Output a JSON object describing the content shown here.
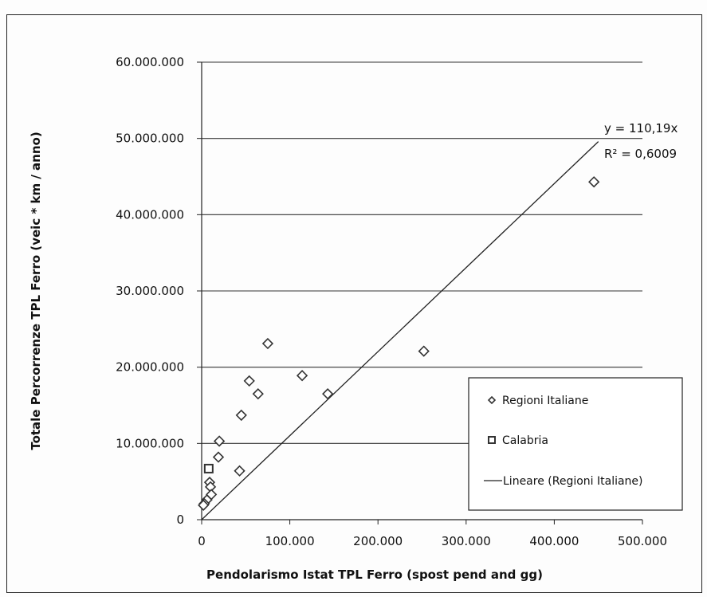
{
  "chart_data": {
    "type": "scatter",
    "xlabel": "Pendolarismo Istat TPL Ferro  (spost pend and gg)",
    "ylabel": "Totale Percorrenze TPL Ferro   (veic * km / anno)",
    "xlim": [
      0,
      500000
    ],
    "ylim": [
      0,
      60000000
    ],
    "x_ticks": [
      "0",
      "100.000",
      "200.000",
      "300.000",
      "400.000",
      "500.000"
    ],
    "y_ticks": [
      "0",
      "10.000.000",
      "20.000.000",
      "30.000.000",
      "40.000.000",
      "50.000.000",
      "60.000.000"
    ],
    "grid": "horizontal",
    "legend_position": "bottom-right",
    "series": [
      {
        "name": "Regioni Italiane",
        "marker": "diamond",
        "points": [
          [
            445000,
            44300000
          ],
          [
            252000,
            22100000
          ],
          [
            75000,
            23100000
          ],
          [
            114000,
            18900000
          ],
          [
            143000,
            16500000
          ],
          [
            54000,
            18200000
          ],
          [
            64000,
            16500000
          ],
          [
            45000,
            13700000
          ],
          [
            20000,
            10300000
          ],
          [
            19000,
            8200000
          ],
          [
            43000,
            6400000
          ],
          [
            9000,
            4900000
          ],
          [
            10000,
            4300000
          ],
          [
            11000,
            3300000
          ],
          [
            6000,
            2600000
          ],
          [
            3000,
            2100000
          ],
          [
            2000,
            1900000
          ]
        ]
      },
      {
        "name": "Calabria",
        "marker": "square",
        "points": [
          [
            8000,
            6700000
          ]
        ]
      },
      {
        "name": "Lineare (Regioni Italiane)",
        "marker": "line",
        "slope": 110.19,
        "points": [
          [
            0,
            0
          ],
          [
            450000,
            49585500
          ]
        ]
      }
    ],
    "trendline": {
      "equation": "y = 110,19x",
      "r2": "R² = 0,6009"
    }
  }
}
